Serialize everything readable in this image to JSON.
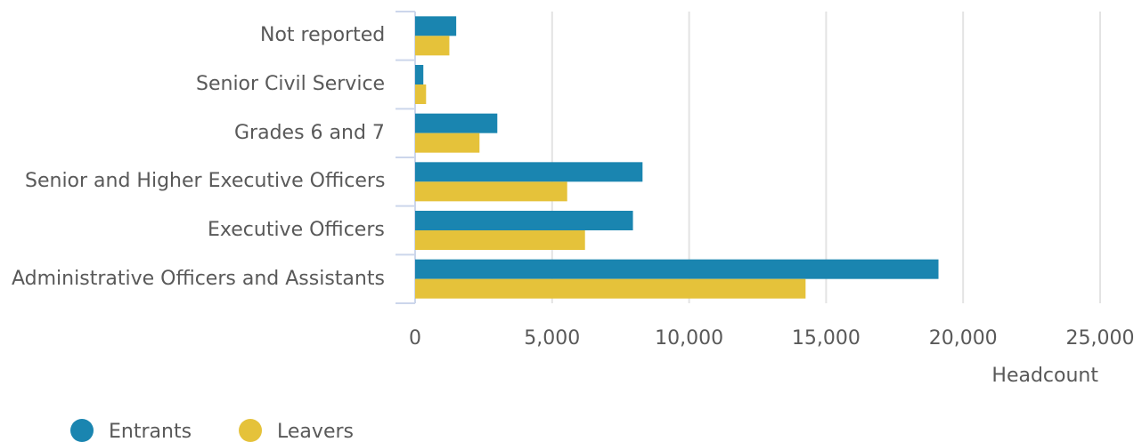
{
  "chart_data": {
    "type": "bar",
    "orientation": "horizontal",
    "categories": [
      "Not reported",
      "Senior Civil Service",
      "Grades 6 and 7",
      "Senior and Higher Executive Officers",
      "Executive Officers",
      "Administrative Officers and Assistants"
    ],
    "series": [
      {
        "name": "Entrants",
        "color": "#1a85b0",
        "values": [
          1500,
          300,
          3000,
          8300,
          7950,
          19100
        ]
      },
      {
        "name": "Leavers",
        "color": "#e5c23a",
        "values": [
          1250,
          400,
          2350,
          5550,
          6200,
          14250
        ]
      }
    ],
    "xlabel": "Headcount",
    "xlim": [
      0,
      25000
    ],
    "xticks": [
      0,
      {
        "value": 5000,
        "label": "5,000"
      },
      {
        "value": 10000,
        "label": "10,000"
      },
      {
        "value": 15000,
        "label": "15,000"
      },
      {
        "value": 20000,
        "label": "20,000"
      },
      {
        "value": 25000,
        "label": "25,000"
      }
    ],
    "grid": true,
    "legend": "bottom-left"
  }
}
